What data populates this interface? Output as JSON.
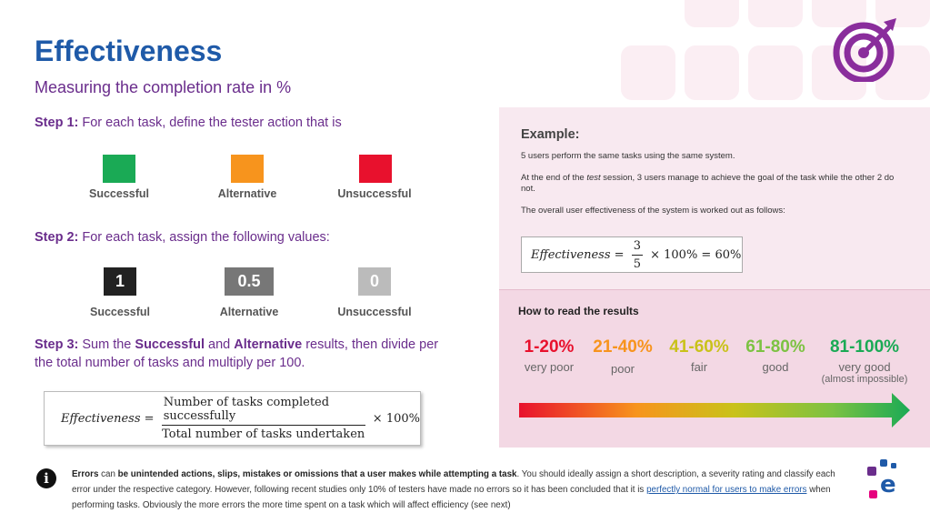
{
  "header": {
    "title": "Effectiveness",
    "subtitle": "Measuring the completion rate in %"
  },
  "step1": {
    "label": "Step 1:",
    "text": " For each task, define the tester action that is",
    "actions": [
      {
        "label": "Successful",
        "color": "#1aaa55"
      },
      {
        "label": "Alternative",
        "color": "#f7941d"
      },
      {
        "label": "Unsuccessful",
        "color": "#e8112d"
      }
    ]
  },
  "step2": {
    "label": "Step 2:",
    "text": " For each task, assign the following values:",
    "values": [
      {
        "value": "1",
        "label": "Successful",
        "color": "#222222"
      },
      {
        "value": "0.5",
        "label": "Alternative",
        "color": "#777777"
      },
      {
        "value": "0",
        "label": "Unsuccessful",
        "color": "#bbbbbb"
      }
    ]
  },
  "step3": {
    "label": "Step 3:",
    "t1": " Sum the ",
    "b1": "Successful",
    "t2": " and ",
    "b2": "Alternative",
    "t3": " results, then divide per the total number of tasks and multiply per 100."
  },
  "formula": {
    "lhs": "Effectiveness",
    "eq": " = ",
    "numerator": "Number of tasks completed successfully",
    "denominator": "Total number of tasks undertaken",
    "rhs": " × 100%"
  },
  "example": {
    "title": "Example:",
    "p1": "5 users perform the same tasks using the same system.",
    "p2a": "At the end of the ",
    "p2i": "test",
    "p2b": " session, 3 users manage to achieve the goal of the task while the other 2 do not.",
    "p3": "The overall user effectiveness of the system is worked out as follows:",
    "lhs": "Effectiveness",
    "eq": " = ",
    "num": "3",
    "den": "5",
    "rhs": " × 100% = 60%"
  },
  "results": {
    "title": "How to read the results",
    "ranges": [
      {
        "range": "1-20%",
        "label": "very poor",
        "note": "",
        "color": "#e8112d"
      },
      {
        "range": "21-40%",
        "label": "poor",
        "note": "",
        "color": "#f7941d"
      },
      {
        "range": "41-60%",
        "label": "fair",
        "note": "",
        "color": "#c9c21a"
      },
      {
        "range": "61-80%",
        "label": "good",
        "note": "",
        "color": "#7cc242"
      },
      {
        "range": "81-100%",
        "label": "very good",
        "note": "(almost impossible)",
        "color": "#1aaa55"
      }
    ]
  },
  "footer": {
    "info_glyph": "i",
    "b1": "Errors",
    "t1": " can ",
    "b2": "be unintended actions, slips, mistakes or omissions that a user makes while attempting a task",
    "t2": ". You should ideally assign a short description, a severity rating and classify each error under the respective category. However, following recent studies only 10% of testers have made no errors so it has been concluded that it is ",
    "link": "perfectly normal for users to make errors",
    "t3": " when performing tasks. Obviously the more errors the more time spent on a task which will affect efficiency (see next)"
  },
  "colors": {
    "title_blue": "#1f5aa8",
    "purple": "#6a2d8c",
    "panel_pink": "#f8e9f0",
    "panel_pink_dark": "#f3d8e4",
    "logo_magenta": "#e6007e",
    "logo_blue": "#1f5aa8",
    "logo_purple": "#6a2d8c"
  },
  "icons": {
    "target": "target-icon",
    "info": "info-icon",
    "logo": "e-logo",
    "arrow": "gradient-arrow"
  }
}
